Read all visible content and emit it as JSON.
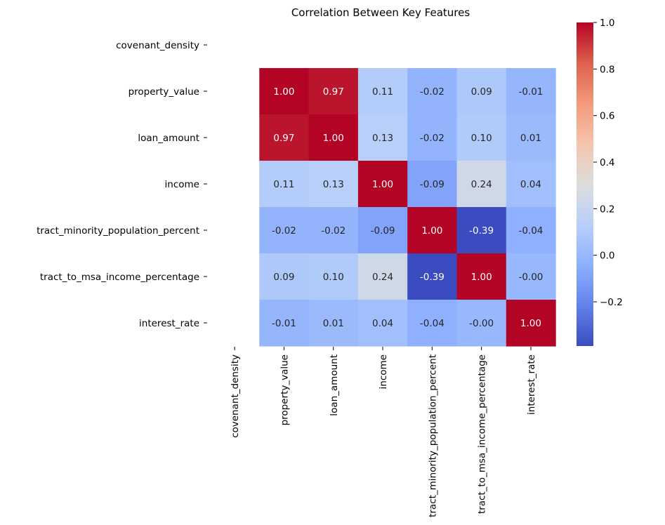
{
  "chart_data": {
    "type": "heatmap",
    "title": "Correlation Between Key Features",
    "row_labels": [
      "covenant_density",
      "property_value",
      "loan_amount",
      "income",
      "tract_minority_population_percent",
      "tract_to_msa_income_percentage",
      "interest_rate"
    ],
    "column_labels": [
      "covenant_density",
      "property_value",
      "loan_amount",
      "income",
      "tract_minority_population_percent",
      "tract_to_msa_income_percentage",
      "interest_rate"
    ],
    "values": [
      [
        null,
        null,
        null,
        null,
        null,
        null,
        null
      ],
      [
        null,
        1.0,
        0.97,
        0.11,
        -0.02,
        0.09,
        -0.01
      ],
      [
        null,
        0.97,
        1.0,
        0.13,
        -0.02,
        0.1,
        0.01
      ],
      [
        null,
        0.11,
        0.13,
        1.0,
        -0.09,
        0.24,
        0.04
      ],
      [
        null,
        -0.02,
        -0.02,
        -0.09,
        1.0,
        -0.39,
        -0.04
      ],
      [
        null,
        0.09,
        0.1,
        0.24,
        -0.39,
        1.0,
        -0.0
      ],
      [
        null,
        -0.01,
        0.01,
        0.04,
        -0.04,
        -0.0,
        1.0
      ]
    ],
    "cell_labels": [
      [
        "",
        "",
        "",
        "",
        "",
        "",
        ""
      ],
      [
        "",
        "1.00",
        "0.97",
        "0.11",
        "-0.02",
        "0.09",
        "-0.01"
      ],
      [
        "",
        "0.97",
        "1.00",
        "0.13",
        "-0.02",
        "0.10",
        "0.01"
      ],
      [
        "",
        "0.11",
        "0.13",
        "1.00",
        "-0.09",
        "0.24",
        "0.04"
      ],
      [
        "",
        "-0.02",
        "-0.02",
        "-0.09",
        "1.00",
        "-0.39",
        "-0.04"
      ],
      [
        "",
        "0.09",
        "0.10",
        "0.24",
        "-0.39",
        "1.00",
        "-0.00"
      ],
      [
        "",
        "-0.01",
        "0.01",
        "0.04",
        "-0.04",
        "-0.00",
        "1.00"
      ]
    ],
    "colormap": "coolwarm",
    "colorbar": {
      "vmin": -0.39,
      "vmax": 1.0,
      "ticks": [
        1.0,
        0.8,
        0.6,
        0.4,
        0.2,
        0.0,
        -0.2
      ],
      "tick_labels": [
        "1.0",
        "0.8",
        "0.6",
        "0.4",
        "0.2",
        "0.0",
        "−0.2"
      ]
    }
  }
}
